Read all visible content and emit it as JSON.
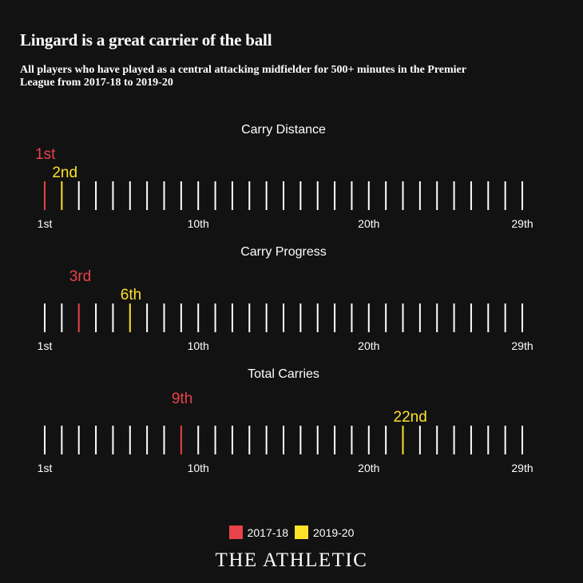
{
  "title": "Lingard is a great carrier of the ball",
  "subtitle": "All players who have played as a central attacking midfielder for 500+ minutes in the Premier League from 2017-18 to 2019-20",
  "colors": {
    "s2017": "#e8434a",
    "s2019": "#ffe12a",
    "tick": "#ffffff",
    "bg": "#121212"
  },
  "chart_data": {
    "type": "strip",
    "total_ranks": 29,
    "axis_labels": [
      "1st",
      "10th",
      "20th",
      "29th"
    ],
    "axis_ranks": [
      1,
      10,
      20,
      29
    ],
    "series": [
      {
        "name": "2017-18",
        "color": "#e8434a"
      },
      {
        "name": "2019-20",
        "color": "#ffe12a"
      }
    ],
    "panels": [
      {
        "title": "Carry Distance",
        "ranks": [
          1,
          2
        ],
        "labels": [
          "1st",
          "2nd"
        ]
      },
      {
        "title": "Carry Progress",
        "ranks": [
          3,
          6
        ],
        "labels": [
          "3rd",
          "6th"
        ]
      },
      {
        "title": "Total Carries",
        "ranks": [
          9,
          22
        ],
        "labels": [
          "9th",
          "22nd"
        ]
      }
    ]
  },
  "legend": [
    {
      "label": "2017-18",
      "color": "#e8434a"
    },
    {
      "label": "2019-20",
      "color": "#ffe12a"
    }
  ],
  "brand": "THE ATHLETIC"
}
